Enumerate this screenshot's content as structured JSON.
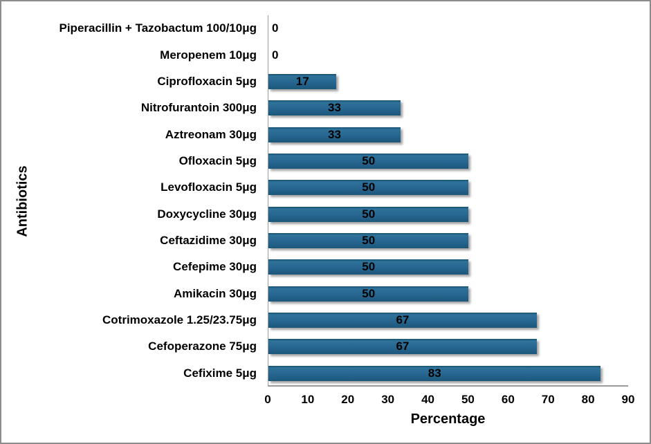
{
  "chart_data": {
    "type": "bar",
    "orientation": "horizontal",
    "title": "",
    "xlabel": "Percentage",
    "ylabel": "Antibiotics",
    "xlim": [
      0,
      90
    ],
    "xticks": [
      0,
      10,
      20,
      30,
      40,
      50,
      60,
      70,
      80,
      90
    ],
    "grid": false,
    "legend": false,
    "value_label_position": "inside-center",
    "categories": [
      "Piperacillin + Tazobactum 100/10μg",
      "Meropenem 10μg",
      "Ciprofloxacin 5μg",
      "Nitrofurantoin 300μg",
      "Aztreonam 30μg",
      "Ofloxacin 5μg",
      "Levofloxacin 5μg",
      "Doxycycline 30μg",
      "Ceftazidime 30μg",
      "Cefepime 30μg",
      "Amikacin 30μg",
      "Cotrimoxazole 1.25/23.75μg",
      "Cefoperazone 75μg",
      "Cefixime 5μg"
    ],
    "values": [
      0,
      0,
      17,
      33,
      33,
      50,
      50,
      50,
      50,
      50,
      50,
      67,
      67,
      83
    ]
  },
  "colors": {
    "bar_fill_top": "#16506F",
    "bar_fill_light": "#2F729A",
    "bar_fill_mid": "#276690",
    "bar_fill_bottom": "#1C577B",
    "axis_line": "#9B9B9B",
    "text": "#000000",
    "figure_border": "#8C8C8C",
    "background": "#FFFFFF"
  }
}
